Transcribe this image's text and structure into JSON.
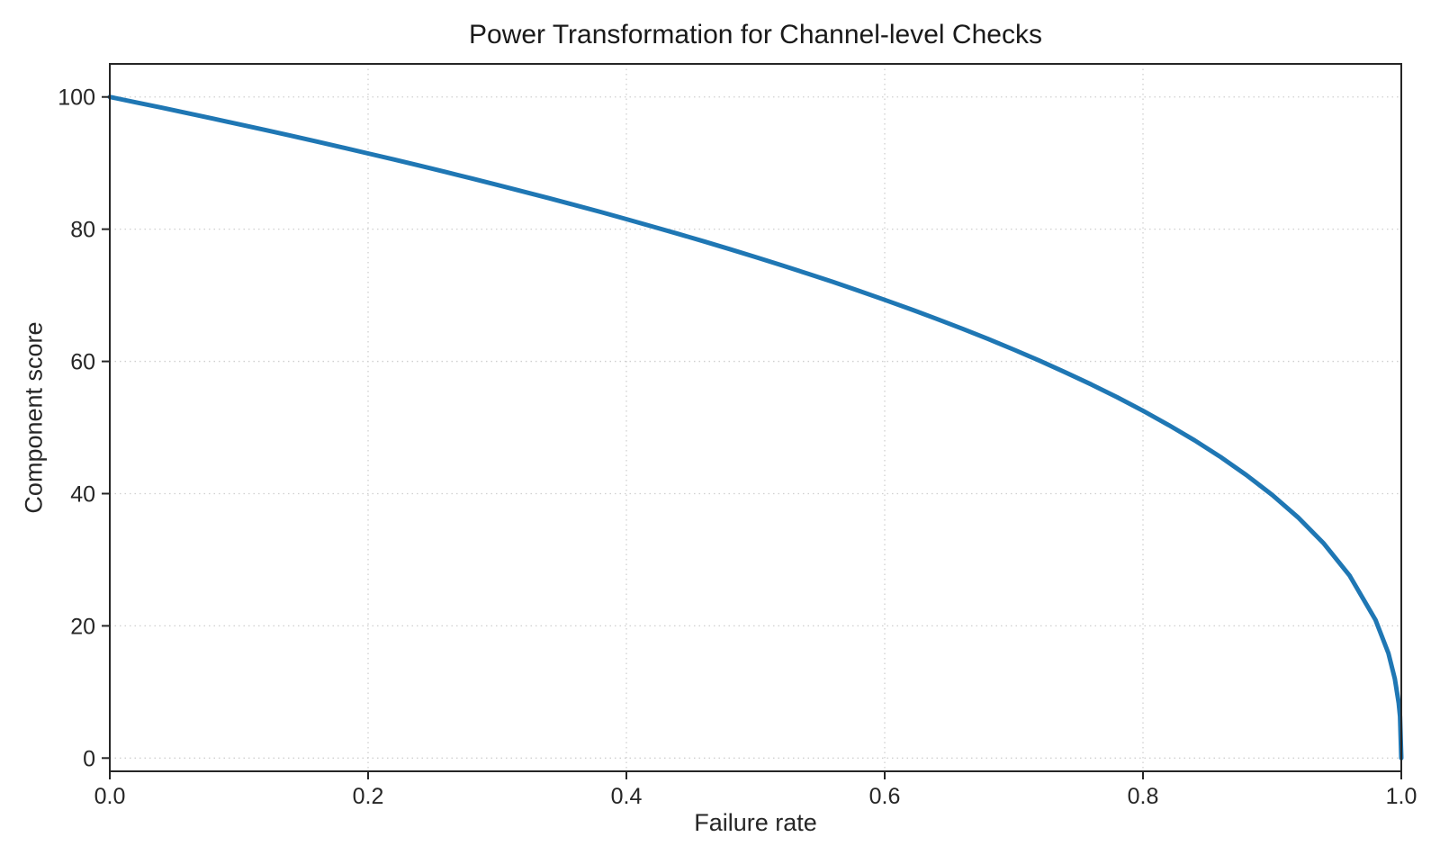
{
  "chart_data": {
    "type": "line",
    "title": "Power Transformation for Channel-level Checks",
    "xlabel": "Failure rate",
    "ylabel": "Component score",
    "xlim": [
      0.0,
      1.0
    ],
    "ylim": [
      -2,
      105
    ],
    "x_ticks": {
      "values": [
        0.0,
        0.2,
        0.4,
        0.6,
        0.8,
        1.0
      ],
      "labels": [
        "0.0",
        "0.2",
        "0.4",
        "0.6",
        "0.8",
        "1.0"
      ]
    },
    "y_ticks": {
      "values": [
        0,
        20,
        40,
        60,
        80,
        100
      ],
      "labels": [
        "0",
        "20",
        "40",
        "60",
        "80",
        "100"
      ]
    },
    "grid": "dotted-both-axes",
    "legend": "none",
    "series": [
      {
        "color": "#1f77b4",
        "line_width": 5,
        "points": [
          [
            0.0,
            100.0
          ],
          [
            0.02,
            99.19
          ],
          [
            0.04,
            98.38
          ],
          [
            0.06,
            97.56
          ],
          [
            0.08,
            96.72
          ],
          [
            0.1,
            95.87
          ],
          [
            0.12,
            95.02
          ],
          [
            0.14,
            94.15
          ],
          [
            0.16,
            93.26
          ],
          [
            0.18,
            92.37
          ],
          [
            0.2,
            91.46
          ],
          [
            0.22,
            90.54
          ],
          [
            0.24,
            89.6
          ],
          [
            0.26,
            88.65
          ],
          [
            0.28,
            87.69
          ],
          [
            0.3,
            86.7
          ],
          [
            0.32,
            85.7
          ],
          [
            0.34,
            84.69
          ],
          [
            0.36,
            83.65
          ],
          [
            0.38,
            82.6
          ],
          [
            0.4,
            81.52
          ],
          [
            0.42,
            80.42
          ],
          [
            0.44,
            79.3
          ],
          [
            0.46,
            78.15
          ],
          [
            0.48,
            76.98
          ],
          [
            0.5,
            75.79
          ],
          [
            0.52,
            74.56
          ],
          [
            0.54,
            73.3
          ],
          [
            0.56,
            72.01
          ],
          [
            0.58,
            70.68
          ],
          [
            0.6,
            69.31
          ],
          [
            0.62,
            67.91
          ],
          [
            0.64,
            66.45
          ],
          [
            0.66,
            64.95
          ],
          [
            0.68,
            63.4
          ],
          [
            0.7,
            61.78
          ],
          [
            0.72,
            60.1
          ],
          [
            0.74,
            58.34
          ],
          [
            0.76,
            56.51
          ],
          [
            0.78,
            54.57
          ],
          [
            0.8,
            52.53
          ],
          [
            0.82,
            50.36
          ],
          [
            0.84,
            48.05
          ],
          [
            0.86,
            45.55
          ],
          [
            0.88,
            42.82
          ],
          [
            0.9,
            39.81
          ],
          [
            0.92,
            36.41
          ],
          [
            0.94,
            32.45
          ],
          [
            0.96,
            27.6
          ],
          [
            0.98,
            20.91
          ],
          [
            0.99,
            15.85
          ],
          [
            0.995,
            12.01
          ],
          [
            0.998,
            8.33
          ],
          [
            0.999,
            6.31
          ],
          [
            1.0,
            0.0
          ]
        ]
      }
    ]
  }
}
